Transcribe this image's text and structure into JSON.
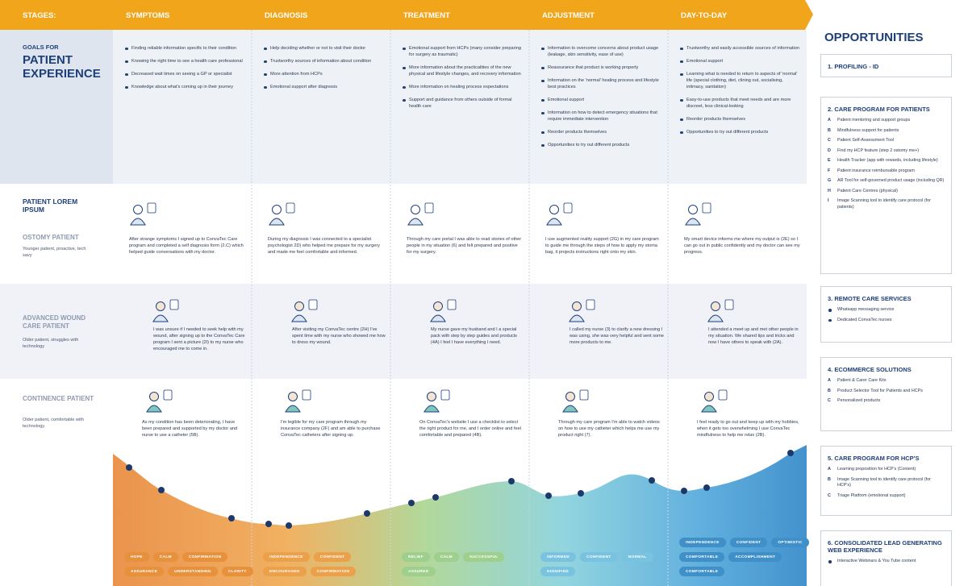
{
  "stages_label": "STAGES:",
  "stages": [
    "SYMPTOMS",
    "DIAGNOSIS",
    "TREATMENT",
    "ADJUSTMENT",
    "DAY-TO-DAY"
  ],
  "goals": {
    "label_top": "GOALS FOR",
    "label_main": "PATIENT EXPERIENCE",
    "columns": [
      [
        "Finding reliable information specific to their condition",
        "Knowing the right time to see a health care professional",
        "Decreased wait times on seeing a GP or specialist",
        "Knowledge about what's coming up in their journey"
      ],
      [
        "Help deciding whether or not to visit their doctor",
        "Trustworthy sources of information about condition",
        "More attention from HCPs",
        "Emotional support after diagnosis"
      ],
      [
        "Emotional support from HCPs (many consider preparing for surgery as traumatic)",
        "More information about the practicalities of the new physical and lifestyle changes, and recovery information",
        "More information on healing process expectations",
        "Support and guidance from others outside of formal health care"
      ],
      [
        "Information to overcome concerns about product usage (leakage, skin sensitivity, ease of use)",
        "Reassurance that product is working properly",
        "Information on the 'normal' healing process and lifestyle best practices",
        "Emotional support",
        "Information on how to detect emergency situations that require immediate intervention",
        "Reorder products themselves",
        "Opportunities to try out different products"
      ],
      [
        "Trustworthy and easily accessible sources of information",
        "Emotional support",
        "Learning what is needed to return to aspects of 'normal' life (special clothing, diet, clining out, socialising, intimacy, sanitation)",
        "Easy-to-use products that meet needs and are more discreet, less clinical-looking",
        "Reorder products themselves",
        "Opportunities to try out different products"
      ]
    ]
  },
  "personas": [
    {
      "heading": "PATIENT LOREM IPSUM",
      "name": "OSTOMY PATIENT",
      "description": "Younger patient, proactive, tech savy",
      "stories": [
        "After strange symptoms I signed up to ConvaTec Care program and completed a self diagnosis form (2.C) which helped guide conversations with my doctor.",
        "During my diagnosis I was connected to a specialist psychologist 2D) who helped me prepare for my surgery and made me feel comfortable and informed.",
        "Through my care portal I was able to read stories of other people in my situation (6) and felt prepared and positive for my surgery.",
        "I use augmented reality support (2G) in my care program to guide me through the steps of how to apply my stoma bag, it projects instructions right onto my skin.",
        "My smart device informs me where my output is (2E) so I can go out in public confidently and my doctor can see my progress."
      ]
    },
    {
      "name": "ADVANCED WOUND CARE PATIENT",
      "description": "Older patient, struggles with technology",
      "stories": [
        "I was unsure if I needed to seek help with my wound, after signing up to the ConvaTec Care program I sent a picture (2I) to my nurse who encouraged me to come in.",
        "After visiting my ConvaTec centre (2H) I've spent time with my nurse who showed me how to dress my wound.",
        "My nurse gave my husband and I a special pack with step by step guides and products (4A) I feel I have everything I need.",
        "I called my nurse (3) to clarify a new dressing I was using, she was very helpful and sent some more products to me.",
        "I attended a meet up and met other people in my situation. We shared tips and tricks and now I have others to speak with (2A)."
      ]
    },
    {
      "name": "CONTINENCE PATIENT",
      "description": "Older patient, comfortable with technology.",
      "stories": [
        "As my condition has been deteriorating, I have been prepared and supported by my doctor and nurse to use a catheter (5B).",
        "I'm legible for my care program through my insurance company (2F) and am able to purchase ConvaTec catheters after signing up.",
        "On ConvaTec's website I use a checklist to select the right product for me, and I order online and feel comfortable and prepared (4B).",
        "Through my care program I'm able to watch videos on how to use my catheter which helps me use my product right (7).",
        "I feel ready to go out and keep up with my hobbies, when it gets too overwhelming I use ConvaTec mindfulness to help me relax (2B)."
      ]
    }
  ],
  "emotions": [
    [
      "HOPE",
      "CALM",
      "CONFIRMATION",
      "ASSURANCE",
      "UNDERSTANDING",
      "CLARITY"
    ],
    [
      "INDEPENDENCE",
      "CONFIDENT",
      "ENCOURAGED",
      "CONFIRMATION"
    ],
    [
      "RELIEF",
      "CALM",
      "SUCCESSFUL",
      "ASSURED"
    ],
    [
      "INFORMED",
      "CONFIDENT",
      "NORMAL",
      "DIGNIFIED"
    ],
    [
      "INDEPENDENCE",
      "CONFIDENT",
      "OPTIMISTIC",
      "COMFORTABLE",
      "ACCOMPLISHMENT",
      "COMFORTABLE"
    ]
  ],
  "opportunities": {
    "title": "OPPORTUNITIES",
    "sections": [
      {
        "heading": "1. PROFILING - ID",
        "items": []
      },
      {
        "heading": "2. CARE PROGRAM FOR PATIENTS",
        "items": [
          {
            "letter": "A",
            "text": "Patient mentoring and support groups"
          },
          {
            "letter": "B",
            "text": "Mindfulness support for patients"
          },
          {
            "letter": "C",
            "text": "Patient Self-Assessment Tool"
          },
          {
            "letter": "D",
            "text": "Find my HCP feature (step 2 ostomy me+)"
          },
          {
            "letter": "E",
            "text": "Health Tracker (app with rewards, including lifestyle)"
          },
          {
            "letter": "F",
            "text": "Patient insurance reimbursable program"
          },
          {
            "letter": "G",
            "text": "AR Tool for self-governed product usage (including QR)"
          },
          {
            "letter": "H",
            "text": "Patient Care Centres (physical)"
          },
          {
            "letter": "I",
            "text": "Image Scanning tool to identify care protocol (for patients)"
          }
        ]
      },
      {
        "heading": "3. REMOTE CARE SERVICES",
        "items": [
          {
            "text": "Whatsapp messaging service"
          },
          {
            "text": "Dedicated ConvaTec nurses"
          }
        ]
      },
      {
        "heading": "4. ECOMMERCE SOLUTIONS",
        "items": [
          {
            "letter": "A",
            "text": "Patient & Carer Care Kits"
          },
          {
            "letter": "B",
            "text": "Product Selector Tool for Patients and HCPs"
          },
          {
            "letter": "C",
            "text": "Personalized products"
          }
        ]
      },
      {
        "heading": "5. CARE PROGRAM FOR HCP'S",
        "items": [
          {
            "letter": "A",
            "text": "Learning proposition for HCP's (Content)"
          },
          {
            "letter": "B",
            "text": "Image Scanning tool to identify care protocol (for HCP's)"
          },
          {
            "letter": "C",
            "text": "Triage Platform (emotional support)"
          }
        ]
      },
      {
        "heading": "6. CONSOLIDATED LEAD GENERATING WEB EXPERIENCE",
        "items": [
          {
            "text": "Interactive Webinars & You Tube content"
          }
        ]
      }
    ]
  }
}
